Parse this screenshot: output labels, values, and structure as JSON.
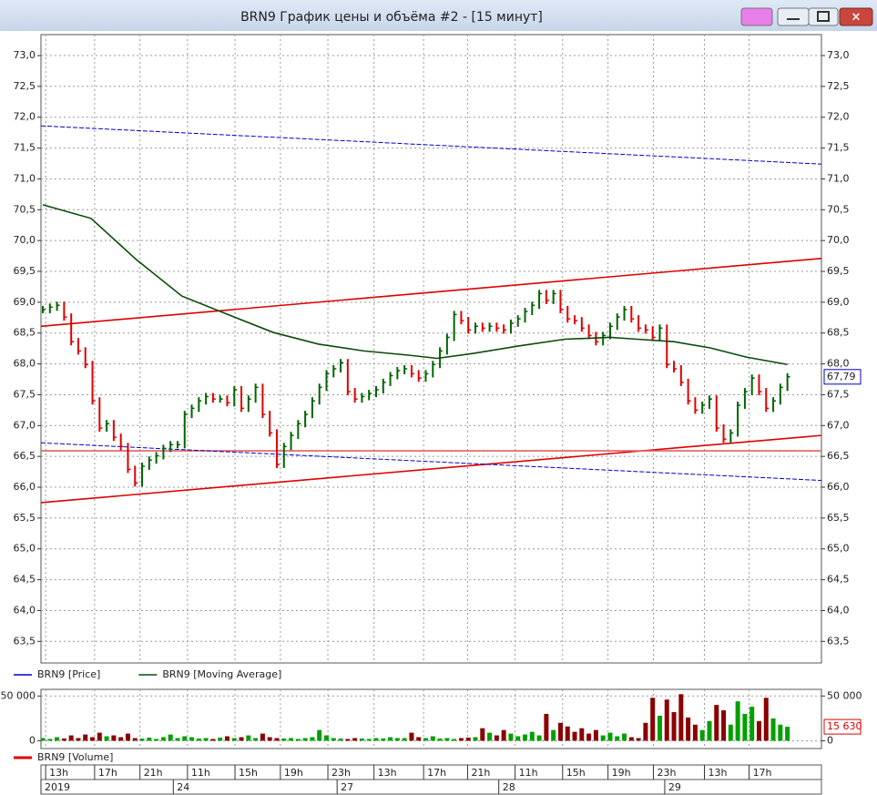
{
  "window": {
    "title": "BRN9 График цены и объёма #2 - [15 минут]"
  },
  "chart_data": [
    {
      "type": "ohlc",
      "xlim": [
        -0.26,
        109.8
      ],
      "ylim": [
        63.15,
        73.34
      ],
      "grid": true,
      "yticks": [
        {
          "value": 63.5,
          "label": "63,5"
        },
        {
          "value": 64,
          "label": "64,0"
        },
        {
          "value": 64.5,
          "label": "64,5"
        },
        {
          "value": 65,
          "label": "65,0"
        },
        {
          "value": 65.5,
          "label": "65,5"
        },
        {
          "value": 66,
          "label": "66,0"
        },
        {
          "value": 66.5,
          "label": "66,5"
        },
        {
          "value": 67,
          "label": "67,0"
        },
        {
          "value": 67.5,
          "label": "67,5"
        },
        {
          "value": 68,
          "label": "68,0"
        },
        {
          "value": 68.5,
          "label": "68,5"
        },
        {
          "value": 69,
          "label": "69,0"
        },
        {
          "value": 69.5,
          "label": "69,5"
        },
        {
          "value": 70,
          "label": "70,0"
        },
        {
          "value": 70.5,
          "label": "70,5"
        },
        {
          "value": 71,
          "label": "71,0"
        },
        {
          "value": 71.5,
          "label": "71,5"
        },
        {
          "value": 72,
          "label": "72,0"
        },
        {
          "value": 72.5,
          "label": "72,5"
        },
        {
          "value": 73,
          "label": "73,0"
        }
      ],
      "series": [
        {
          "name": "BRN9 [Price]",
          "color": "#0000cc",
          "style": "bars",
          "up_color": "#006400",
          "down_color": "#e00000",
          "x": [
            0,
            1,
            2,
            3,
            4,
            5,
            6,
            7,
            8,
            9,
            10,
            11,
            12,
            13,
            14,
            15,
            16,
            17,
            18,
            19,
            20,
            21,
            22,
            23,
            24,
            25,
            26,
            27,
            28,
            29,
            30,
            31,
            32,
            33,
            34,
            35,
            36,
            37,
            38,
            39,
            40,
            41,
            42,
            43,
            44,
            45,
            46,
            47,
            48,
            49,
            50,
            51,
            52,
            53,
            54,
            55,
            56,
            57,
            58,
            59,
            60,
            61,
            62,
            63,
            64,
            65,
            66,
            67,
            68,
            69,
            70,
            71,
            72,
            73,
            74,
            75,
            76,
            77,
            78,
            79,
            80,
            81,
            82,
            83,
            84,
            85,
            86,
            87,
            88,
            89,
            90,
            91,
            92,
            93,
            94,
            95,
            96,
            97,
            98,
            99,
            100,
            101,
            102,
            103,
            104,
            105
          ],
          "values": [
            68.88,
            68.92,
            68.95,
            68.76,
            68.36,
            68.21,
            67.99,
            67.4,
            66.96,
            67.03,
            66.81,
            66.66,
            66.29,
            66.07,
            66.34,
            66.44,
            66.51,
            66.63,
            66.69,
            66.69,
            67.18,
            67.28,
            67.4,
            67.47,
            67.43,
            67.43,
            67.37,
            67.58,
            67.28,
            67.43,
            67.62,
            67.18,
            66.88,
            66.37,
            66.66,
            66.84,
            67.03,
            67.18,
            67.4,
            67.62,
            67.84,
            67.92,
            68.02,
            67.55,
            67.43,
            67.47,
            67.52,
            67.58,
            67.7,
            67.81,
            67.89,
            67.92,
            67.84,
            67.77,
            67.84,
            67.99,
            68.21,
            68.43,
            68.8,
            68.7,
            68.55,
            68.61,
            68.58,
            68.61,
            68.58,
            68.55,
            68.66,
            68.73,
            68.85,
            68.95,
            69.14,
            69.03,
            69.14,
            68.88,
            68.73,
            68.7,
            68.58,
            68.46,
            68.36,
            68.46,
            68.61,
            68.76,
            68.88,
            68.73,
            68.58,
            68.55,
            68.43,
            68.58,
            67.99,
            67.92,
            67.7,
            67.4,
            67.25,
            67.33,
            67.43,
            66.96,
            66.78,
            66.88,
            67.33,
            67.55,
            67.77,
            67.55,
            67.28,
            67.4,
            67.62,
            67.79
          ]
        },
        {
          "name": "BRN9 [Moving Average]",
          "color": "#0a4a0a",
          "style": "line",
          "x": [
            0,
            6.8,
            13.2,
            19.6,
            26.1,
            32.5,
            38.9,
            45.3,
            51.7,
            55.6,
            60.7,
            67.1,
            73.6,
            80,
            83.8,
            89,
            94.1,
            99.2,
            105
          ],
          "values": [
            70.58,
            70.36,
            69.69,
            69.1,
            68.8,
            68.51,
            68.32,
            68.21,
            68.14,
            68.09,
            68.17,
            68.29,
            68.4,
            68.43,
            68.4,
            68.36,
            68.26,
            68.11,
            67.99
          ]
        }
      ],
      "lines": [
        {
          "color": "#e00000",
          "dash": false,
          "x": [
            -0.26,
            109.8
          ],
          "values": [
            68.61,
            69.71
          ]
        },
        {
          "color": "#e00000",
          "dash": false,
          "x": [
            -0.26,
            109.8
          ],
          "values": [
            65.75,
            66.84
          ]
        },
        {
          "color": "#e06060",
          "dash": false,
          "x": [
            -0.26,
            109.8
          ],
          "values": [
            66.59,
            66.59
          ]
        },
        {
          "color": "#0000cc",
          "dash": true,
          "x": [
            -0.26,
            109.8
          ],
          "values": [
            71.86,
            71.24
          ]
        },
        {
          "color": "#0000cc",
          "dash": true,
          "x": [
            -0.26,
            109.8
          ],
          "values": [
            66.72,
            66.11
          ]
        }
      ],
      "last_value": {
        "value": 67.79,
        "label": "67,79"
      }
    },
    {
      "type": "bar",
      "xlim": [
        -0.26,
        109.8
      ],
      "ylim": [
        -8700,
        57400
      ],
      "grid": true,
      "yticks": [
        0,
        {
          "value": 50000,
          "label": "50 000"
        }
      ],
      "series": [
        {
          "name": "BRN9 [Volume]",
          "color": "#e00000",
          "up_color": "#00a000",
          "down_color": "#8b0000",
          "x": [
            0,
            1,
            2,
            3,
            4,
            5,
            6,
            7,
            8,
            9,
            10,
            11,
            12,
            13,
            14,
            15,
            16,
            17,
            18,
            19,
            20,
            21,
            22,
            23,
            24,
            25,
            26,
            27,
            28,
            29,
            30,
            31,
            32,
            33,
            34,
            35,
            36,
            37,
            38,
            39,
            40,
            41,
            42,
            43,
            44,
            45,
            46,
            47,
            48,
            49,
            50,
            51,
            52,
            53,
            54,
            55,
            56,
            57,
            58,
            59,
            60,
            61,
            62,
            63,
            64,
            65,
            66,
            67,
            68,
            69,
            70,
            71,
            72,
            73,
            74,
            75,
            76,
            77,
            78,
            79,
            80,
            81,
            82,
            83,
            84,
            85,
            86,
            87,
            88,
            89,
            90,
            91,
            92,
            93,
            94,
            95,
            96,
            97,
            98,
            99,
            100,
            101,
            102,
            103,
            104,
            105
          ],
          "values": [
            3000,
            2000,
            4000,
            2500,
            6000,
            3000,
            7000,
            4000,
            9000,
            5000,
            6000,
            4000,
            8000,
            3000,
            2500,
            3500,
            2000,
            4000,
            7000,
            3000,
            5000,
            4000,
            2500,
            3000,
            2000,
            3500,
            5000,
            3000,
            4000,
            6000,
            3000,
            8000,
            4000,
            3000,
            2500,
            3000,
            2000,
            3000,
            4000,
            12000,
            6000,
            3000,
            2500,
            2000,
            3000,
            2500,
            2000,
            3000,
            2500,
            4000,
            3000,
            3000,
            9000,
            4000,
            3000,
            5000,
            2500,
            3000,
            2000,
            3000,
            3500,
            4000,
            14000,
            9000,
            6000,
            12000,
            8000,
            5000,
            7000,
            10000,
            6000,
            30000,
            12000,
            20000,
            16000,
            10000,
            14000,
            8000,
            12000,
            6000,
            9000,
            5000,
            8000,
            4000,
            3000,
            20000,
            48000,
            28000,
            46000,
            32000,
            52000,
            26000,
            18000,
            12000,
            22000,
            40000,
            34000,
            18000,
            44000,
            30000,
            38000,
            22000,
            48000,
            25000,
            18000,
            15630
          ]
        }
      ],
      "last_value": {
        "value": 15630,
        "label": "15 630"
      },
      "xticks": [
        {
          "value": 0.4,
          "label": "13h"
        },
        {
          "value": 7.3,
          "label": "17h"
        },
        {
          "value": 13.7,
          "label": "21h"
        },
        {
          "value": 20.4,
          "label": "11h"
        },
        {
          "value": 27.1,
          "label": "15h"
        },
        {
          "value": 33.5,
          "label": "19h"
        },
        {
          "value": 40.2,
          "label": "23h"
        },
        {
          "value": 46.7,
          "label": "13h"
        },
        {
          "value": 53.7,
          "label": "17h"
        },
        {
          "value": 59.9,
          "label": "21h"
        },
        {
          "value": 66.6,
          "label": "11h"
        },
        {
          "value": 73.3,
          "label": "15h"
        },
        {
          "value": 79.7,
          "label": "19h"
        },
        {
          "value": 86.1,
          "label": "23h"
        },
        {
          "value": 93.3,
          "label": "13h"
        },
        {
          "value": 99.6,
          "label": "17h"
        }
      ],
      "date_ticks": [
        {
          "value": -0.26,
          "label": "2019"
        },
        {
          "value": 18.4,
          "label": "24"
        },
        {
          "value": 41.5,
          "label": "27"
        },
        {
          "value": 64.3,
          "label": "28"
        },
        {
          "value": 87.7,
          "label": "29"
        }
      ]
    }
  ]
}
